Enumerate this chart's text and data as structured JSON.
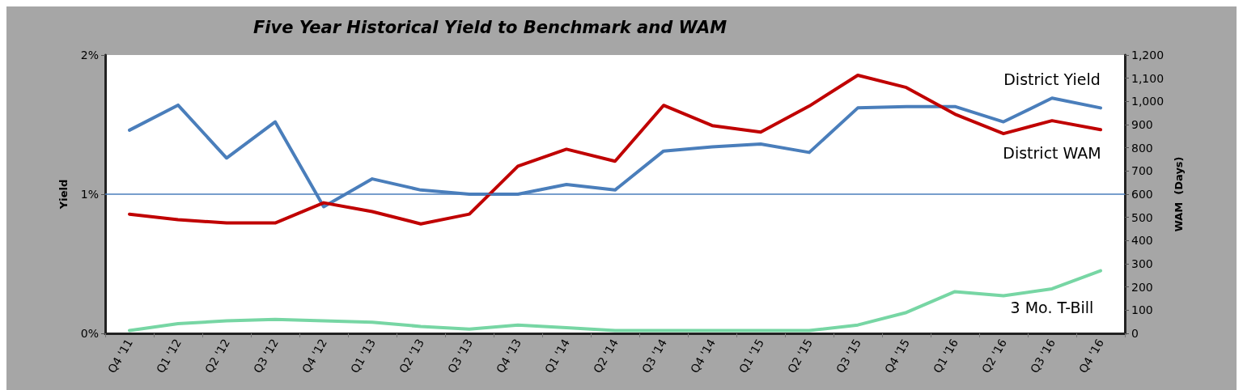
{
  "chart_data": {
    "type": "line",
    "title": "Five Year Historical Yield to Benchmark and WAM",
    "ylabel": "Yield",
    "y2label": "WAM  (Days)",
    "categories": [
      "Q4 '11",
      "Q1 '12",
      "Q2 '12",
      "Q3 '12",
      "Q4 '12",
      "Q1 '13",
      "Q2 '13",
      "Q3 '13",
      "Q4 '13",
      "Q1 '14",
      "Q2 '14",
      "Q3 '14",
      "Q4 '14",
      "Q1 '15",
      "Q2 '15",
      "Q3 '15",
      "Q4 '15",
      "Q1 '16",
      "Q2 '16",
      "Q3 '16",
      "Q4 '16"
    ],
    "series": [
      {
        "name": "District Yield",
        "color": "#4a7ebb",
        "values": [
          1.46,
          1.64,
          1.26,
          1.52,
          0.91,
          1.11,
          1.03,
          1.0,
          1.0,
          1.07,
          1.03,
          1.31,
          1.34,
          1.36,
          1.3,
          1.62,
          1.63,
          1.63,
          1.52,
          1.69,
          1.62
        ]
      },
      {
        "name": "District WAM",
        "color": "#c00000",
        "axis": "y2",
        "values": [
          514,
          490,
          476,
          476,
          563,
          525,
          472,
          514,
          721,
          794,
          742,
          983,
          896,
          868,
          980,
          1113,
          1060,
          945,
          861,
          917,
          878
        ]
      },
      {
        "name": "3 Mo. T-Bill",
        "color": "#77d6a4",
        "values": [
          0.02,
          0.07,
          0.09,
          0.1,
          0.09,
          0.08,
          0.05,
          0.03,
          0.06,
          0.04,
          0.02,
          0.02,
          0.02,
          0.02,
          0.02,
          0.06,
          0.15,
          0.3,
          0.27,
          0.32,
          0.45
        ]
      }
    ],
    "ylim": [
      0,
      2
    ],
    "yticks": [
      {
        "value": 0,
        "label": "0%"
      },
      {
        "value": 1,
        "label": "1%"
      },
      {
        "value": 2,
        "label": "2%"
      }
    ],
    "y2lim": [
      0,
      1200
    ],
    "y2ticks": [
      0,
      100,
      200,
      300,
      400,
      500,
      600,
      700,
      800,
      900,
      {
        "value": 1000,
        "label": "1,000"
      },
      {
        "value": 1100,
        "label": "1,100"
      },
      {
        "value": 1200,
        "label": "1,200"
      }
    ],
    "ref_lines": [
      {
        "axis": "y",
        "value": 1,
        "color": "#4a7ebb"
      }
    ],
    "grid": false,
    "legend": false,
    "marker": "none",
    "line_style": "solid"
  }
}
